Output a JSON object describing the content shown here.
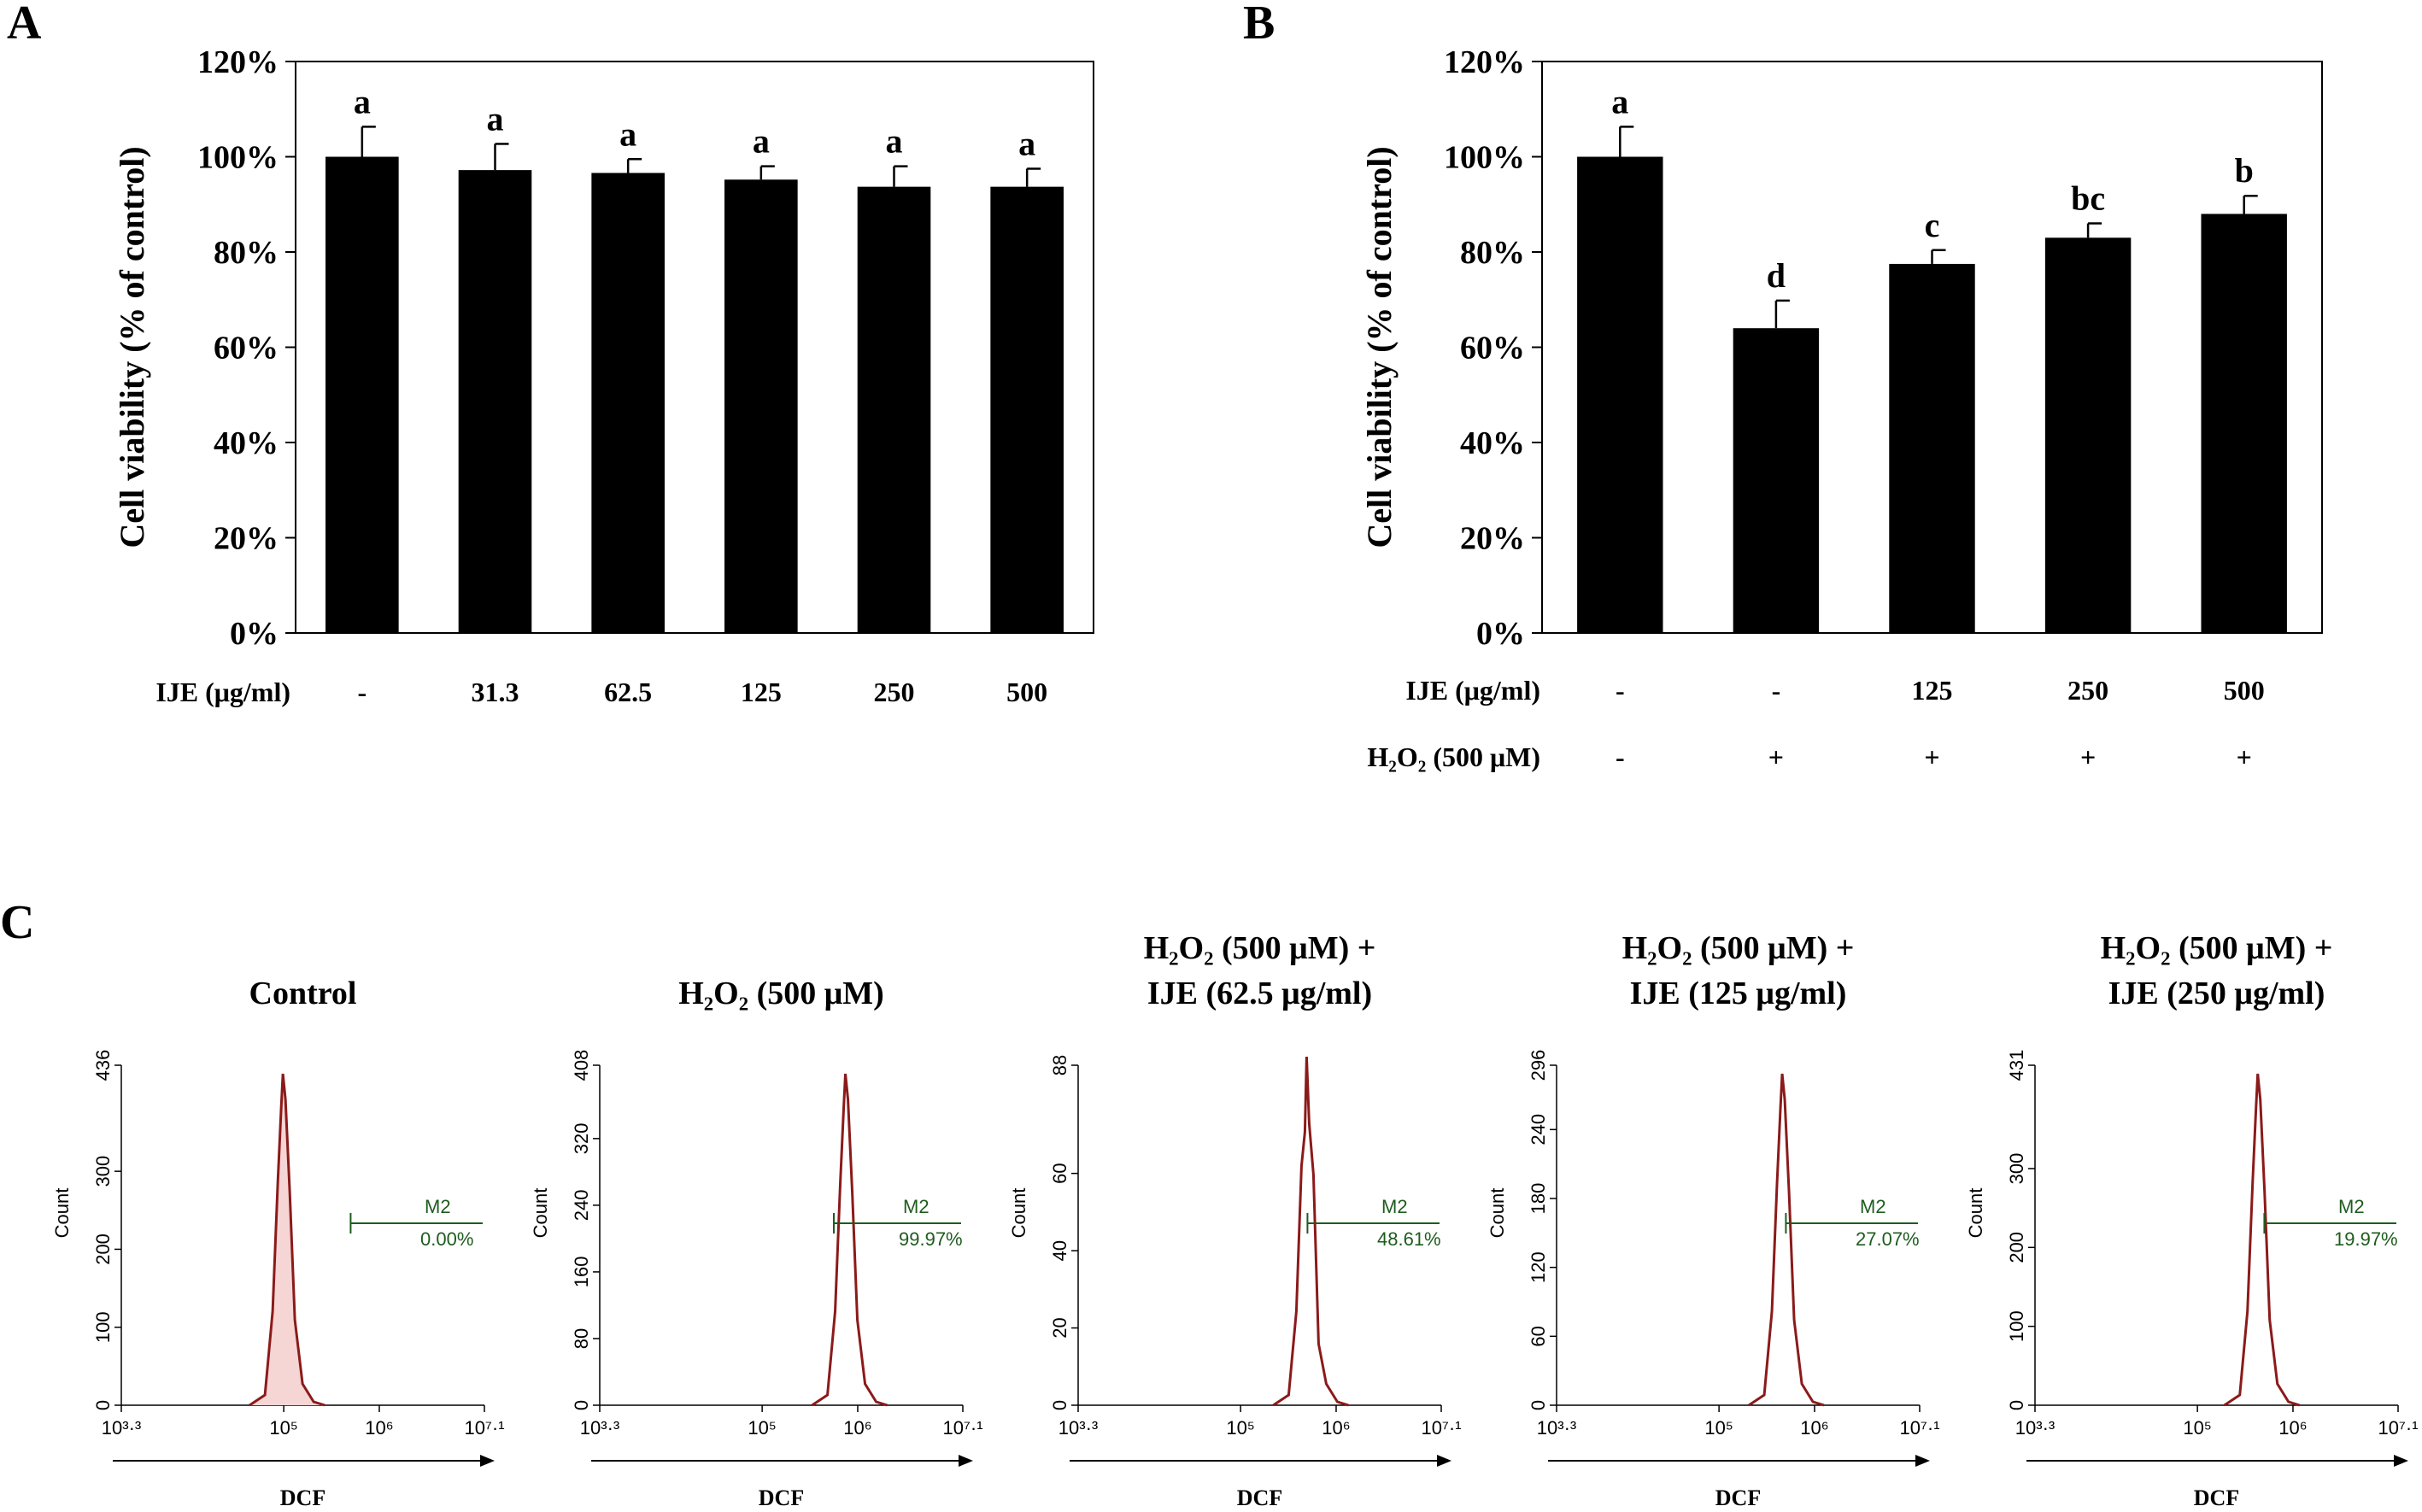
{
  "chart_data": [
    {
      "panel": "A",
      "type": "bar",
      "ylabel": "Cell viability (% of control)",
      "ylim": [
        0,
        120
      ],
      "yticks": [
        "0%",
        "20%",
        "40%",
        "60%",
        "80%",
        "100%",
        "120%"
      ],
      "row_labels": [
        "IJE (μg/ml)"
      ],
      "categories": [
        [
          "-"
        ],
        [
          "31.3"
        ],
        [
          "62.5"
        ],
        [
          "125"
        ],
        [
          "250"
        ],
        [
          "500"
        ]
      ],
      "values": [
        100,
        97.2,
        96.6,
        95.2,
        93.7,
        93.7
      ],
      "errors": [
        6.3,
        5.5,
        2.9,
        2.8,
        4.3,
        3.8
      ],
      "letters": [
        "a",
        "a",
        "a",
        "a",
        "a",
        "a"
      ]
    },
    {
      "panel": "B",
      "type": "bar",
      "ylabel": "Cell viability (% of control)",
      "ylim": [
        0,
        120
      ],
      "yticks": [
        "0%",
        "20%",
        "40%",
        "60%",
        "80%",
        "100%",
        "120%"
      ],
      "row_labels": [
        "IJE (μg/ml)",
        "H₂O₂ (500 μM)"
      ],
      "categories": [
        [
          "-",
          "-"
        ],
        [
          "-",
          "+"
        ],
        [
          "125",
          "+"
        ],
        [
          "250",
          "+"
        ],
        [
          "500",
          "+"
        ]
      ],
      "values": [
        100,
        64,
        77.5,
        83,
        88
      ],
      "errors": [
        6.3,
        5.8,
        2.9,
        3.0,
        3.8
      ],
      "letters": [
        "a",
        "d",
        "c",
        "bc",
        "b"
      ]
    },
    {
      "panel": "C",
      "type": "histogram",
      "xlabel": "DCF",
      "ylabel": "Count",
      "xticks": [
        "10³·³",
        "10⁵",
        "10⁶",
        "10⁷·¹"
      ],
      "marker": "M2",
      "plots": [
        {
          "title": [
            "Control"
          ],
          "ymax": 436,
          "yticks": [
            "0",
            "100",
            "200",
            "300",
            "436"
          ],
          "peak_log": 5.0,
          "marker_value": "0.00%",
          "marker_start_log": 5.7
        },
        {
          "title": [
            "H₂O₂ (500 μM)"
          ],
          "ymax": 408,
          "yticks": [
            "0",
            "80",
            "160",
            "240",
            "320",
            "408"
          ],
          "peak_log": 5.88,
          "marker_value": "99.97%",
          "marker_start_log": 5.75
        },
        {
          "title": [
            "H₂O₂ (500 μM) +",
            "IJE (62.5 μg/ml)"
          ],
          "ymax": 88,
          "yticks": [
            "0",
            "20",
            "40",
            "60",
            "88"
          ],
          "peak_log": 5.7,
          "marker_value": "48.61%",
          "marker_start_log": 5.7
        },
        {
          "title": [
            "H₂O₂ (500 μM) +",
            "IJE (125 μg/ml)"
          ],
          "ymax": 296,
          "yticks": [
            "0",
            "60",
            "120",
            "180",
            "240",
            "296"
          ],
          "peak_log": 5.67,
          "marker_value": "27.07%",
          "marker_start_log": 5.7
        },
        {
          "title": [
            "H₂O₂ (500 μM) +",
            "IJE (250 μg/ml)"
          ],
          "ymax": 431,
          "yticks": [
            "0",
            "100",
            "200",
            "300",
            "431"
          ],
          "peak_log": 5.64,
          "marker_value": "19.97%",
          "marker_start_log": 5.7
        }
      ]
    }
  ],
  "panel_labels": [
    "A",
    "B",
    "C"
  ]
}
